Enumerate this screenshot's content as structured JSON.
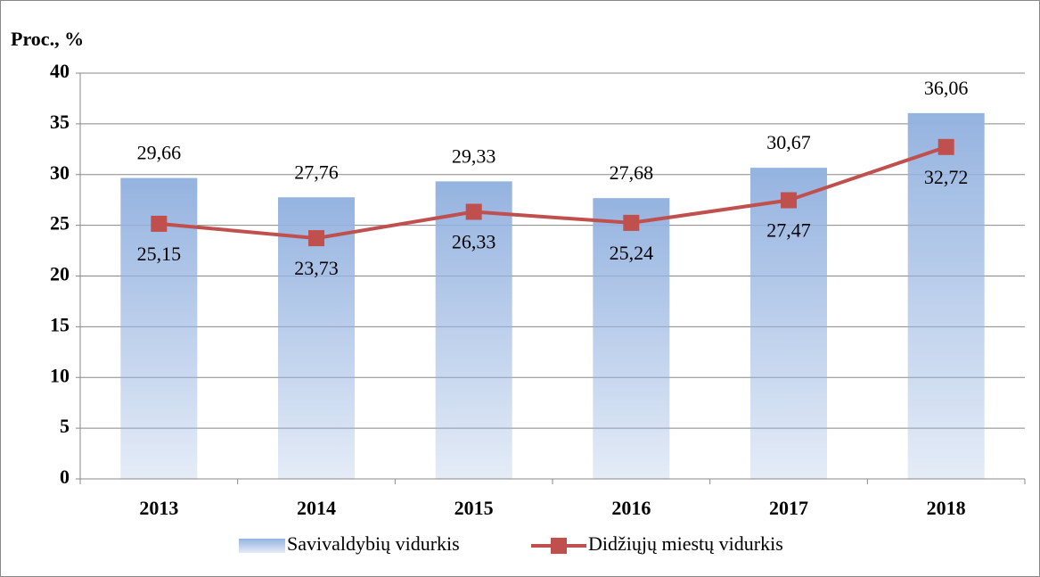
{
  "chart_data": {
    "type": "bar",
    "y_label": "Proc., %",
    "categories": [
      "2013",
      "2014",
      "2015",
      "2016",
      "2017",
      "2018"
    ],
    "series": [
      {
        "name": "Savivaldybių vidurkis",
        "type": "bar",
        "color": "#95b3e0",
        "values": [
          29.66,
          27.76,
          29.33,
          27.68,
          30.67,
          36.06
        ],
        "value_labels": [
          "29,66",
          "27,76",
          "29,33",
          "27,68",
          "30,67",
          "36,06"
        ]
      },
      {
        "name": "Didžiųjų miestų vidurkis",
        "type": "line",
        "color": "#c0504d",
        "values": [
          25.15,
          23.73,
          26.33,
          25.24,
          27.47,
          32.72
        ],
        "value_labels": [
          "25,15",
          "23,73",
          "26,33",
          "25,24",
          "27,47",
          "32,72"
        ]
      }
    ],
    "ylim": [
      0,
      40
    ],
    "yticks": [
      0,
      5,
      10,
      15,
      20,
      25,
      30,
      35,
      40
    ],
    "grid": true,
    "legend": "bottom"
  }
}
